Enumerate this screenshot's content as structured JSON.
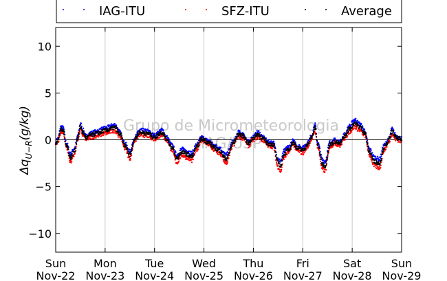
{
  "chart_data": {
    "type": "scatter",
    "title": "",
    "xlabel": "",
    "ylabel": "Δq_{U−R}(g/kg)",
    "ylabel_parts": {
      "base": "Δq",
      "subscript": "U−R",
      "unit": "(g/kg)"
    },
    "ylim": [
      -12,
      12
    ],
    "xlim_days": [
      0,
      7
    ],
    "grid": "vertical lines at day boundaries",
    "legend_position": "top, above plot",
    "watermark": [
      "Grupo de Micrometeorologia",
      "IAG/USP"
    ],
    "yticks": [
      {
        "value": 10,
        "label": "10"
      },
      {
        "value": 5,
        "label": "5"
      },
      {
        "value": 0,
        "label": "0"
      },
      {
        "value": -5,
        "label": "−5"
      },
      {
        "value": -10,
        "label": "−10"
      }
    ],
    "xticks": [
      {
        "day": 0,
        "line1": "Sun",
        "line2": "Nov-22"
      },
      {
        "day": 1,
        "line1": "Mon",
        "line2": "Nov-23"
      },
      {
        "day": 2,
        "line1": "Tue",
        "line2": "Nov-24"
      },
      {
        "day": 3,
        "line1": "Wed",
        "line2": "Nov-25"
      },
      {
        "day": 4,
        "line1": "Thu",
        "line2": "Nov-26"
      },
      {
        "day": 5,
        "line1": "Fri",
        "line2": "Nov-27"
      },
      {
        "day": 6,
        "line1": "Sat",
        "line2": "Nov-28"
      },
      {
        "day": 7,
        "line1": "Sun",
        "line2": "Nov-29"
      }
    ],
    "average_anchor_points": [
      [
        0.0,
        -0.3
      ],
      [
        0.05,
        0.0
      ],
      [
        0.1,
        1.1
      ],
      [
        0.15,
        1.0
      ],
      [
        0.22,
        -0.6
      ],
      [
        0.3,
        -1.9
      ],
      [
        0.38,
        -1.2
      ],
      [
        0.45,
        0.3
      ],
      [
        0.5,
        1.4
      ],
      [
        0.55,
        0.8
      ],
      [
        0.62,
        0.2
      ],
      [
        0.7,
        0.5
      ],
      [
        0.85,
        0.7
      ],
      [
        1.0,
        1.0
      ],
      [
        1.2,
        1.3
      ],
      [
        1.3,
        0.6
      ],
      [
        1.4,
        -0.6
      ],
      [
        1.5,
        -1.6
      ],
      [
        1.6,
        0.1
      ],
      [
        1.7,
        0.8
      ],
      [
        1.85,
        0.7
      ],
      [
        2.0,
        0.3
      ],
      [
        2.15,
        0.8
      ],
      [
        2.25,
        0.1
      ],
      [
        2.35,
        -0.8
      ],
      [
        2.45,
        -2.0
      ],
      [
        2.55,
        -1.3
      ],
      [
        2.65,
        -1.5
      ],
      [
        2.75,
        -1.8
      ],
      [
        2.85,
        -0.8
      ],
      [
        2.95,
        0.1
      ],
      [
        3.1,
        -0.3
      ],
      [
        3.2,
        -0.8
      ],
      [
        3.3,
        -1.1
      ],
      [
        3.45,
        -2.0
      ],
      [
        3.6,
        -0.3
      ],
      [
        3.7,
        0.6
      ],
      [
        3.8,
        0.4
      ],
      [
        3.9,
        -0.4
      ],
      [
        4.0,
        0.2
      ],
      [
        4.1,
        0.6
      ],
      [
        4.2,
        0.1
      ],
      [
        4.3,
        -0.4
      ],
      [
        4.4,
        -0.5
      ],
      [
        4.5,
        -2.4
      ],
      [
        4.55,
        -2.8
      ],
      [
        4.62,
        -1.5
      ],
      [
        4.72,
        -1.0
      ],
      [
        4.8,
        -0.3
      ],
      [
        4.9,
        -0.9
      ],
      [
        5.0,
        -1.1
      ],
      [
        5.1,
        -0.5
      ],
      [
        5.18,
        0.3
      ],
      [
        5.25,
        1.3
      ],
      [
        5.3,
        -0.5
      ],
      [
        5.4,
        -2.6
      ],
      [
        5.45,
        -2.8
      ],
      [
        5.55,
        -0.5
      ],
      [
        5.65,
        -0.2
      ],
      [
        5.75,
        -0.4
      ],
      [
        5.85,
        0.4
      ],
      [
        5.95,
        1.2
      ],
      [
        6.05,
        1.8
      ],
      [
        6.15,
        1.4
      ],
      [
        6.25,
        0.8
      ],
      [
        6.35,
        -1.3
      ],
      [
        6.45,
        -2.3
      ],
      [
        6.55,
        -2.5
      ],
      [
        6.65,
        -0.8
      ],
      [
        6.75,
        0.0
      ],
      [
        6.8,
        0.9
      ],
      [
        6.9,
        0.2
      ],
      [
        7.0,
        0.0
      ]
    ],
    "series": [
      {
        "name": "IAG-ITU",
        "color": "#0000ff",
        "offset": 0.35
      },
      {
        "name": "SFZ-ITU",
        "color": "#ff0000",
        "offset": -0.4
      },
      {
        "name": "Average",
        "color": "#000000",
        "offset": 0.0
      }
    ],
    "zero_line": 0
  }
}
